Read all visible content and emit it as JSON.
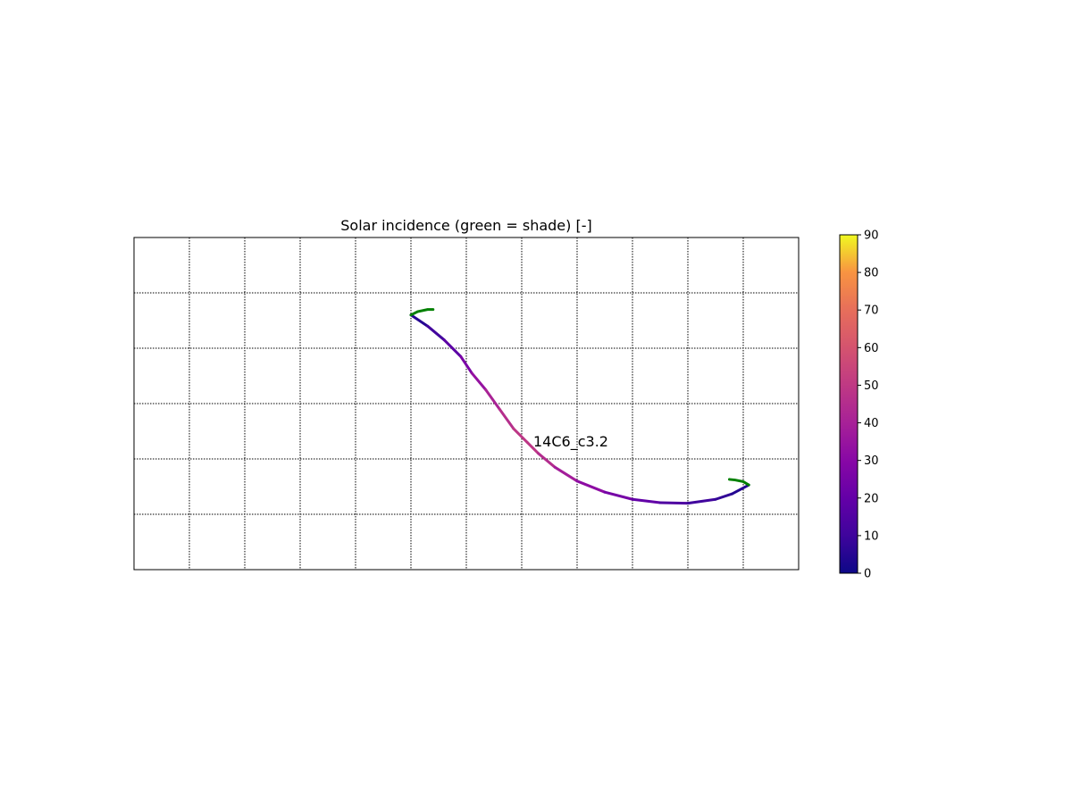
{
  "chart_data": {
    "type": "scatter",
    "title": "Solar incidence (green = shade) [-]",
    "xlabel": "",
    "ylabel": "",
    "xlim": [
      0,
      12
    ],
    "ylim": [
      0,
      6
    ],
    "grid": true,
    "axis_ticks_labeled": false,
    "colormap": "plasma",
    "shade_color": "#008000",
    "annotation": {
      "text": "14C6_c3.2",
      "x": 7.2,
      "y": 2.3
    },
    "colorbar": {
      "range": [
        0,
        90
      ],
      "ticks": [
        "0",
        "10",
        "20",
        "30",
        "40",
        "50",
        "60",
        "70",
        "80",
        "90"
      ],
      "placement": "right"
    },
    "track": {
      "x": [
        5.0,
        5.3,
        5.6,
        5.9,
        6.1,
        6.35,
        6.6,
        6.85,
        7.1,
        7.3,
        7.6,
        8.0,
        8.5,
        9.0,
        9.5,
        10.0,
        10.5,
        10.8,
        11.1
      ],
      "y": [
        4.6,
        4.4,
        4.15,
        3.85,
        3.55,
        3.25,
        2.9,
        2.55,
        2.3,
        2.1,
        1.85,
        1.6,
        1.4,
        1.27,
        1.21,
        1.2,
        1.27,
        1.37,
        1.53
      ],
      "incidence": [
        2,
        8,
        14,
        22,
        30,
        38,
        44,
        48,
        50,
        48,
        42,
        35,
        28,
        22,
        17,
        12,
        9,
        6,
        3
      ]
    },
    "shade": [
      {
        "x": [
          5.0,
          5.12,
          5.3,
          5.4
        ],
        "y": [
          4.6,
          4.66,
          4.7,
          4.7
        ]
      },
      {
        "x": [
          11.1,
          11.0,
          10.85,
          10.75
        ],
        "y": [
          1.53,
          1.59,
          1.62,
          1.63
        ]
      }
    ]
  }
}
